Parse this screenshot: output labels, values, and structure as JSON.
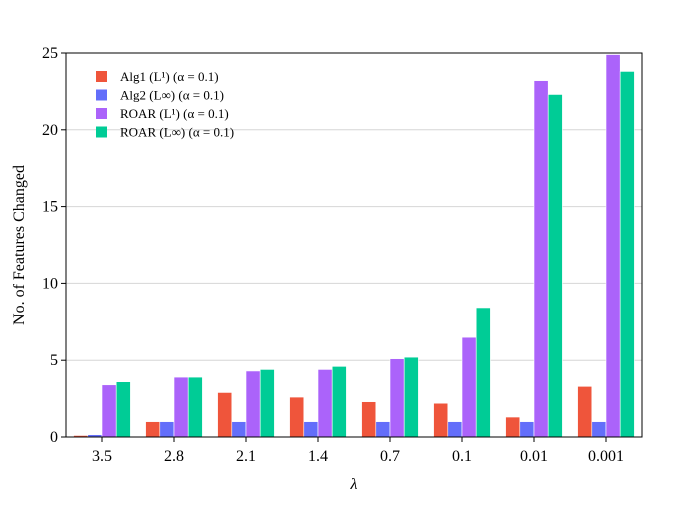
{
  "chart_data": {
    "type": "bar",
    "categories": [
      "3.5",
      "2.8",
      "2.1",
      "1.4",
      "0.7",
      "0.1",
      "0.01",
      "0.001"
    ],
    "series": [
      {
        "name": "Alg1 (L¹) (α = 0.1)",
        "color": "#ef553b",
        "values": [
          0.1,
          1.0,
          2.9,
          2.6,
          2.3,
          2.2,
          1.3,
          3.3
        ]
      },
      {
        "name": "Alg2 (L∞) (α = 0.1)",
        "color": "#636efa",
        "values": [
          0.15,
          1.0,
          1.0,
          1.0,
          1.0,
          1.0,
          1.0,
          1.0
        ]
      },
      {
        "name": "ROAR (L¹) (α = 0.1)",
        "color": "#ab63fa",
        "values": [
          3.4,
          3.9,
          4.3,
          4.4,
          5.1,
          6.5,
          23.2,
          24.9
        ]
      },
      {
        "name": "ROAR (L∞) (α = 0.1)",
        "color": "#00cc96",
        "values": [
          3.6,
          3.9,
          4.4,
          4.6,
          5.2,
          8.4,
          22.3,
          23.8
        ]
      }
    ],
    "xlabel": "λ",
    "ylabel": "No. of Features Changed",
    "ylim": [
      0,
      25
    ],
    "yticks": [
      0,
      5,
      10,
      15,
      20,
      25
    ],
    "grid": "horizontal",
    "legend_position": "top-left"
  }
}
